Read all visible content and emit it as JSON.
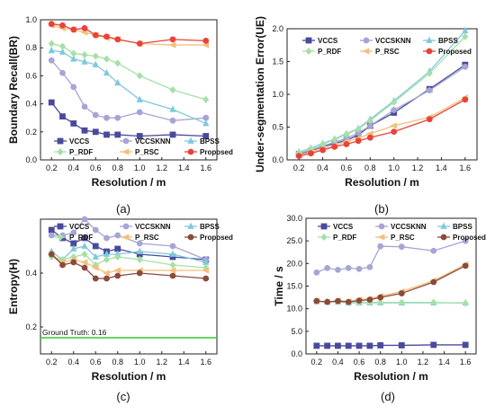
{
  "panels": [
    {
      "caption": "(a)",
      "chart_data": {
        "type": "line",
        "xlabel": "Resolution / m",
        "ylabel": "Boundary Recall(BR)",
        "xlim": [
          0.1,
          1.7
        ],
        "ylim": [
          0.0,
          1.0
        ],
        "xticks": [
          0.2,
          0.4,
          0.6,
          0.8,
          1.0,
          1.2,
          1.4,
          1.6
        ],
        "yticks": [
          0.0,
          0.2,
          0.4,
          0.6,
          0.8,
          1.0
        ],
        "xtick_labels": [
          "0.2",
          "0.4",
          "0.6",
          "0.8",
          "1.0",
          "1.2",
          "1.4",
          "1.6"
        ],
        "ytick_labels": [
          "0.0",
          "0.2",
          "0.4",
          "0.6",
          "0.8",
          "1.0"
        ],
        "legend_position": "bottom-left",
        "x": [
          0.2,
          0.3,
          0.4,
          0.5,
          0.6,
          0.7,
          0.8,
          1.0,
          1.3,
          1.6
        ],
        "series": [
          {
            "name": "VCCS",
            "color": "#4a4a9c",
            "marker": "square",
            "values": [
              0.41,
              0.31,
              0.26,
              0.21,
              0.2,
              0.18,
              0.18,
              0.17,
              0.18,
              0.17
            ]
          },
          {
            "name": "VCCSKNN",
            "color": "#a5a5d6",
            "marker": "circle",
            "values": [
              0.71,
              0.62,
              0.52,
              0.38,
              0.32,
              0.3,
              0.3,
              0.34,
              0.28,
              0.3
            ]
          },
          {
            "name": "BPSS",
            "color": "#7fc9dd",
            "marker": "triangle",
            "values": [
              0.78,
              0.77,
              0.72,
              0.7,
              0.68,
              0.62,
              0.55,
              0.43,
              0.36,
              0.26
            ]
          },
          {
            "name": "P_RDF",
            "color": "#a6e0a6",
            "marker": "diamond",
            "values": [
              0.83,
              0.81,
              0.76,
              0.75,
              0.74,
              0.72,
              0.69,
              0.6,
              0.5,
              0.43
            ]
          },
          {
            "name": "P_RSC",
            "color": "#f2c07c",
            "marker": "triangle-left",
            "values": [
              0.96,
              0.94,
              0.93,
              0.91,
              0.89,
              0.87,
              0.86,
              0.83,
              0.82,
              0.82
            ]
          },
          {
            "name": "Proposed",
            "color": "#e8433a",
            "marker": "circle",
            "values": [
              0.97,
              0.96,
              0.93,
              0.94,
              0.89,
              0.88,
              0.86,
              0.83,
              0.86,
              0.85
            ]
          }
        ]
      }
    },
    {
      "caption": "(b)",
      "chart_data": {
        "type": "line",
        "xlabel": "Resolution / m",
        "ylabel": "Under-segmentation Error(UE)",
        "xlim": [
          0.1,
          1.7
        ],
        "ylim": [
          0.0,
          2.0
        ],
        "xticks": [
          0.2,
          0.4,
          0.6,
          0.8,
          1.0,
          1.2,
          1.4,
          1.6
        ],
        "yticks": [
          0.0,
          0.5,
          1.0,
          1.5,
          2.0
        ],
        "xtick_labels": [
          "0.2",
          "0.4",
          "0.6",
          "0.8",
          "1.0",
          "1.2",
          "1.4",
          "1.6"
        ],
        "ytick_labels": [
          "0.0",
          "0.5",
          "1.0",
          "1.5",
          "2.0"
        ],
        "legend_position": "top-left",
        "x": [
          0.2,
          0.3,
          0.4,
          0.5,
          0.6,
          0.7,
          0.8,
          1.0,
          1.3,
          1.6
        ],
        "series": [
          {
            "name": "VCCS",
            "color": "#4a4a9c",
            "marker": "square",
            "values": [
              0.09,
              0.14,
              0.2,
              0.25,
              0.3,
              0.38,
              0.52,
              0.72,
              1.08,
              1.45
            ]
          },
          {
            "name": "VCCSKNN",
            "color": "#a5a5d6",
            "marker": "circle",
            "values": [
              0.1,
              0.15,
              0.21,
              0.27,
              0.33,
              0.41,
              0.52,
              0.76,
              1.06,
              1.42
            ]
          },
          {
            "name": "BPSS",
            "color": "#7fc9dd",
            "marker": "triangle",
            "values": [
              0.12,
              0.18,
              0.25,
              0.32,
              0.4,
              0.48,
              0.62,
              0.9,
              1.35,
              1.97
            ]
          },
          {
            "name": "P_RDF",
            "color": "#a6e0a6",
            "marker": "diamond",
            "values": [
              0.11,
              0.17,
              0.24,
              0.31,
              0.39,
              0.47,
              0.6,
              0.88,
              1.32,
              1.88
            ]
          },
          {
            "name": "P_RSC",
            "color": "#f2c07c",
            "marker": "triangle-left",
            "values": [
              0.07,
              0.12,
              0.17,
              0.22,
              0.28,
              0.33,
              0.4,
              0.52,
              0.65,
              0.95
            ]
          },
          {
            "name": "Proposed",
            "color": "#e8433a",
            "marker": "circle",
            "values": [
              0.06,
              0.1,
              0.15,
              0.2,
              0.24,
              0.29,
              0.34,
              0.43,
              0.62,
              0.92
            ]
          }
        ]
      }
    },
    {
      "caption": "(c)",
      "chart_data": {
        "type": "line",
        "xlabel": "Resolution / m",
        "ylabel": "Entropy(H)",
        "xlim": [
          0.1,
          1.7
        ],
        "ylim": [
          0.1,
          0.6
        ],
        "xticks": [
          0.2,
          0.4,
          0.6,
          0.8,
          1.0,
          1.2,
          1.4,
          1.6
        ],
        "yticks": [
          0.2,
          0.4
        ],
        "xtick_labels": [
          "0.2",
          "0.4",
          "0.6",
          "0.8",
          "1.0",
          "1.2",
          "1.4",
          "1.6"
        ],
        "ytick_labels": [
          "0.2",
          "0.4"
        ],
        "legend_position": "top",
        "annotation": {
          "text": "Ground Truth: 0.16",
          "value": 0.16,
          "color": "#33cc33"
        },
        "x": [
          0.2,
          0.3,
          0.4,
          0.5,
          0.6,
          0.7,
          0.8,
          1.0,
          1.3,
          1.6
        ],
        "series": [
          {
            "name": "VCCS",
            "color": "#4a4a9c",
            "marker": "square",
            "values": [
              0.56,
              0.53,
              0.51,
              0.53,
              0.5,
              0.48,
              0.49,
              0.47,
              0.46,
              0.45
            ]
          },
          {
            "name": "VCCSKNN",
            "color": "#a5a5d6",
            "marker": "circle",
            "values": [
              0.54,
              0.54,
              0.55,
              0.6,
              0.56,
              0.53,
              0.54,
              0.51,
              0.5,
              0.45
            ]
          },
          {
            "name": "BPSS",
            "color": "#7fc9dd",
            "marker": "triangle",
            "values": [
              0.48,
              0.45,
              0.49,
              0.5,
              0.46,
              0.47,
              0.47,
              0.48,
              0.47,
              0.44
            ]
          },
          {
            "name": "P_RDF",
            "color": "#a6e0a6",
            "marker": "diamond",
            "values": [
              0.46,
              0.45,
              0.46,
              0.47,
              0.43,
              0.45,
              0.46,
              0.45,
              0.43,
              0.42
            ]
          },
          {
            "name": "P_RSC",
            "color": "#f2c07c",
            "marker": "triangle-left",
            "values": [
              0.47,
              0.44,
              0.45,
              0.44,
              0.42,
              0.4,
              0.41,
              0.41,
              0.41,
              0.41
            ]
          },
          {
            "name": "Proposed",
            "color": "#8b4a3a",
            "marker": "circle",
            "values": [
              0.47,
              0.43,
              0.44,
              0.42,
              0.38,
              0.38,
              0.39,
              0.4,
              0.39,
              0.38
            ]
          }
        ]
      }
    },
    {
      "caption": "(d)",
      "chart_data": {
        "type": "line",
        "xlabel": "Resolution / m",
        "ylabel": "Time / s",
        "xlim": [
          0.1,
          1.7
        ],
        "ylim": [
          0.0,
          30.0
        ],
        "xticks": [
          0.2,
          0.4,
          0.6,
          0.8,
          1.0,
          1.2,
          1.4,
          1.6
        ],
        "yticks": [
          0.0,
          5.0,
          10.0,
          15.0,
          20.0,
          25.0,
          30.0
        ],
        "xtick_labels": [
          "0.2",
          "0.4",
          "0.6",
          "0.8",
          "1.0",
          "1.2",
          "1.4",
          "1.6"
        ],
        "ytick_labels": [
          "0.0",
          "5.0",
          "10.0",
          "15.0",
          "20.0",
          "25.0",
          "30.0"
        ],
        "legend_position": "top",
        "x": [
          0.2,
          0.3,
          0.4,
          0.5,
          0.6,
          0.7,
          0.8,
          1.0,
          1.3,
          1.6
        ],
        "series": [
          {
            "name": "VCCS",
            "color": "#4a4a9c",
            "marker": "square",
            "values": [
              1.8,
              1.8,
              1.8,
              1.8,
              1.8,
              1.8,
              1.9,
              1.9,
              2.0,
              2.0
            ]
          },
          {
            "name": "VCCSKNN",
            "color": "#a5a5d6",
            "marker": "circle",
            "values": [
              18.0,
              19.0,
              18.6,
              19.0,
              18.8,
              19.2,
              23.8,
              23.7,
              22.8,
              25.0
            ]
          },
          {
            "name": "BPSS",
            "color": "#7fc9dd",
            "marker": "triangle",
            "values": [
              11.6,
              11.5,
              11.5,
              11.3,
              11.3,
              11.3,
              11.3,
              11.3,
              11.3,
              11.3
            ]
          },
          {
            "name": "P_RDF",
            "color": "#a6e0a6",
            "marker": "diamond",
            "values": [
              11.7,
              11.6,
              11.6,
              11.4,
              11.4,
              11.4,
              11.4,
              11.4,
              11.4,
              11.2
            ]
          },
          {
            "name": "P_RSC",
            "color": "#f2c07c",
            "marker": "triangle-left",
            "values": [
              11.8,
              11.4,
              11.8,
              11.6,
              12.0,
              12.2,
              12.8,
              13.8,
              16.2,
              19.8
            ]
          },
          {
            "name": "Proposed",
            "color": "#8b4a3a",
            "marker": "circle",
            "values": [
              11.7,
              11.5,
              11.7,
              11.5,
              11.8,
              12.0,
              12.5,
              13.4,
              15.9,
              19.5
            ]
          }
        ]
      }
    }
  ]
}
